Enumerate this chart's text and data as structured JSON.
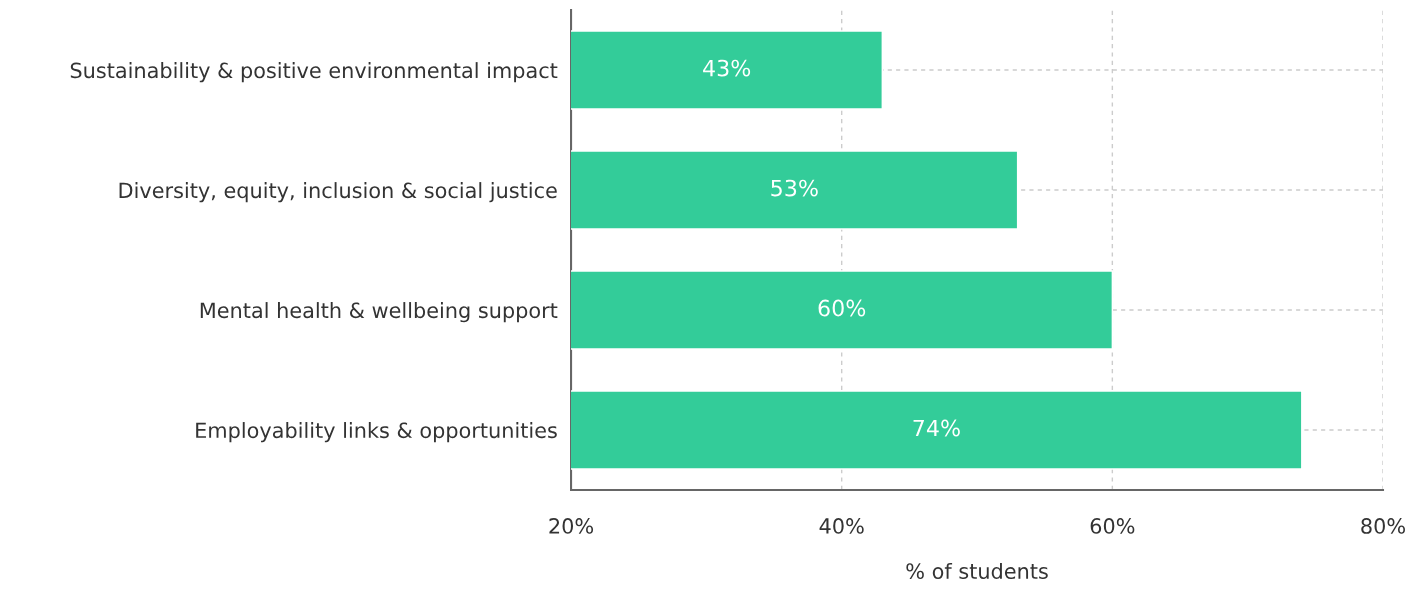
{
  "chart_data": {
    "type": "bar",
    "orientation": "horizontal",
    "xlabel": "% of students",
    "categories": [
      "Sustainability & positive environmental impact",
      "Diversity, equity, inclusion & social justice",
      "Mental health & wellbeing support",
      "Employability links & opportunities"
    ],
    "values": [
      43,
      53,
      60,
      74
    ],
    "value_labels": [
      "43%",
      "53%",
      "60%",
      "74%"
    ],
    "color": "#33cc99",
    "xlim": [
      20,
      80
    ],
    "xticks": [
      {
        "value": 20,
        "label": "20%"
      },
      {
        "value": 40,
        "label": "40%"
      },
      {
        "value": 60,
        "label": "60%"
      },
      {
        "value": 80,
        "label": "80%"
      }
    ],
    "grid": true,
    "legend": false
  }
}
